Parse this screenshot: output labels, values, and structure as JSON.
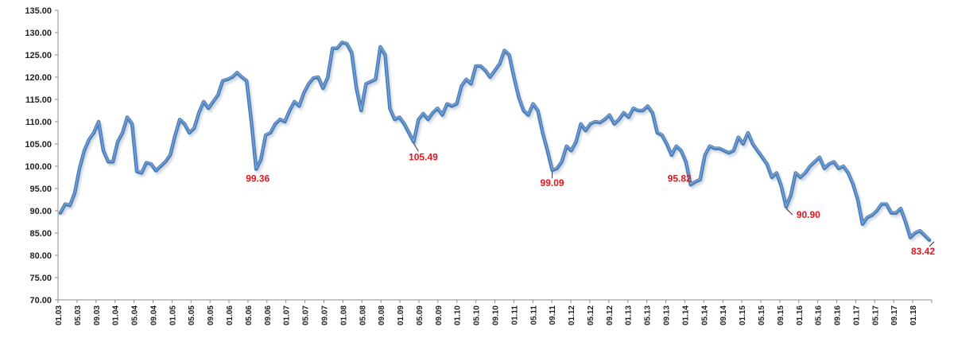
{
  "chart_data": {
    "type": "line",
    "title": "",
    "xlabel": "",
    "ylabel": "",
    "ylim": [
      70,
      135
    ],
    "yticks": [
      "70.00",
      "75.00",
      "80.00",
      "85.00",
      "90.00",
      "95.00",
      "100.00",
      "105.00",
      "110.00",
      "115.00",
      "120.00",
      "125.00",
      "130.00",
      "135.00"
    ],
    "grid": false,
    "legend": "none",
    "line_color": "#4a7ebb",
    "annotation_color": "#e8141c",
    "x_labels": [
      "01.03",
      "05.03",
      "09.03",
      "01.04",
      "05.04",
      "09.04",
      "01.05",
      "05.05",
      "09.05",
      "01.06",
      "05.06",
      "09.06",
      "01.07",
      "05.07",
      "09.07",
      "01.08",
      "05.08",
      "09.08",
      "01.09",
      "05.09",
      "09.09",
      "01.10",
      "05.10",
      "09.10",
      "01.11",
      "05.11",
      "09.11",
      "01.12",
      "05.12",
      "09.12",
      "01.13",
      "05.13",
      "09.13",
      "01.14",
      "05.14",
      "09.14",
      "01.15",
      "05.15",
      "09.15",
      "01.16",
      "05.16",
      "09.16",
      "01.17",
      "05.17",
      "09.17",
      "01.18"
    ],
    "series": [
      {
        "values": [
          89.5,
          91.5,
          91.2,
          94.0,
          99.5,
          103.5,
          106.0,
          107.5,
          110.0,
          103.5,
          101.0,
          101.0,
          105.5,
          107.5,
          111.0,
          109.5,
          98.8,
          98.5,
          100.8,
          100.5,
          99.0,
          100.0,
          101.0,
          102.5,
          106.8,
          110.5,
          109.5,
          107.5,
          108.5,
          112.0,
          114.5,
          113.0,
          114.5,
          116.0,
          119.2,
          119.5,
          120.0,
          121.0,
          120.0,
          119.2,
          110.0,
          99.36,
          101.5,
          107.0,
          107.5,
          109.5,
          110.5,
          110.0,
          112.5,
          114.5,
          113.5,
          116.5,
          118.5,
          119.8,
          120.0,
          117.5,
          120.0,
          126.5,
          126.5,
          127.8,
          127.5,
          125.5,
          117.5,
          112.5,
          118.5,
          119.0,
          119.5,
          126.8,
          125.0,
          113.0,
          110.5,
          111.0,
          109.5,
          107.5,
          105.49,
          110.5,
          111.8,
          110.5,
          112.0,
          113.0,
          111.5,
          114.0,
          113.5,
          114.0,
          118.0,
          119.5,
          118.5,
          122.5,
          122.5,
          121.5,
          120.0,
          121.5,
          123.0,
          126.0,
          125.0,
          120.0,
          115.5,
          112.5,
          111.5,
          114.0,
          112.5,
          107.5,
          103.5,
          99.09,
          99.5,
          101.0,
          104.5,
          103.5,
          105.5,
          109.5,
          108.0,
          109.5,
          110.0,
          109.8,
          110.5,
          111.5,
          109.5,
          110.5,
          112.0,
          111.0,
          113.0,
          112.5,
          112.5,
          113.5,
          112.0,
          107.5,
          107.0,
          105.0,
          102.5,
          104.5,
          103.5,
          101.0,
          95.82,
          96.5,
          97.0,
          102.5,
          104.5,
          104.0,
          104.0,
          103.5,
          103.0,
          103.5,
          106.5,
          105.0,
          107.5,
          105.0,
          103.5,
          102.0,
          100.5,
          97.5,
          98.5,
          95.5,
          90.9,
          93.5,
          98.5,
          97.5,
          98.5,
          100.0,
          101.0,
          102.0,
          99.5,
          100.5,
          101.0,
          99.5,
          100.0,
          98.5,
          96.0,
          92.5,
          87.0,
          88.5,
          89.0,
          90.0,
          91.5,
          91.5,
          89.5,
          89.5,
          90.5,
          87.5,
          84.0,
          85.0,
          85.5,
          84.5,
          83.42
        ]
      }
    ],
    "annotations": [
      {
        "text": "99.36",
        "index": 41,
        "value": 99.36
      },
      {
        "text": "105.49",
        "index": 74,
        "value": 105.49
      },
      {
        "text": "99.09",
        "index": 103,
        "value": 99.09
      },
      {
        "text": "95.82",
        "index": 133,
        "value": 95.82
      },
      {
        "text": "90.90",
        "index": 152,
        "value": 90.9
      },
      {
        "text": "83.42",
        "index": 183,
        "value": 83.42
      }
    ]
  }
}
